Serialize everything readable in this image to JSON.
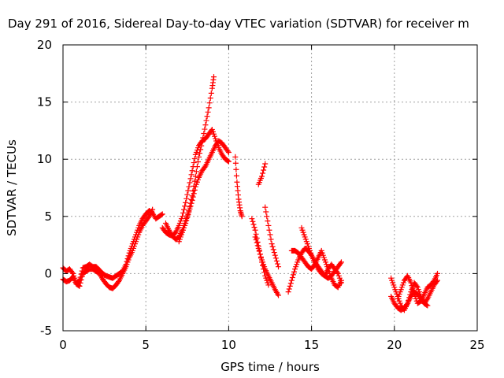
{
  "chart_data": {
    "type": "scatter",
    "title": "Day 291 of 2016, Sidereal Day-to-day VTEC variation (SDTVAR) for receiver m",
    "xlabel": "GPS time / hours",
    "ylabel": "SDTVAR / TECUs",
    "xlim": [
      0,
      25
    ],
    "ylim": [
      -5,
      20
    ],
    "xticks": [
      "0",
      "5",
      "10",
      "15",
      "20",
      "25"
    ],
    "yticks": [
      "-5",
      "0",
      "5",
      "10",
      "15",
      "20"
    ],
    "grid": true,
    "marker": "+",
    "color": "#ff0000",
    "series": [
      {
        "x": [
          0.0,
          0.2,
          0.4,
          0.6,
          0.8,
          1.0,
          1.2,
          1.4,
          1.6,
          1.8,
          2.0,
          2.2,
          2.4,
          2.6,
          2.8,
          3.0,
          3.2,
          3.4,
          3.6,
          3.8,
          4.0,
          4.2,
          4.4,
          4.6,
          4.8,
          5.0,
          5.2,
          5.4,
          5.6,
          5.8,
          6.0
        ],
        "y": [
          0.5,
          0.2,
          0.4,
          0.0,
          -0.8,
          -0.6,
          0.5,
          0.6,
          0.8,
          0.6,
          0.6,
          0.3,
          0.0,
          -0.2,
          -0.3,
          -0.4,
          -0.2,
          0.0,
          0.2,
          0.8,
          1.8,
          2.6,
          3.4,
          4.2,
          4.8,
          5.2,
          5.5,
          5.3,
          4.8,
          5.0,
          5.2
        ]
      },
      {
        "x": [
          0.0,
          0.2,
          0.4,
          0.6,
          0.8,
          1.0,
          1.2,
          1.4,
          1.6,
          1.8,
          2.0,
          2.2,
          2.4,
          2.6,
          2.8,
          3.0,
          3.2,
          3.4,
          3.6,
          3.8,
          4.0,
          4.2,
          4.4,
          4.6,
          4.8,
          5.0,
          5.2,
          5.4
        ],
        "y": [
          -0.5,
          -0.7,
          -0.6,
          -0.3,
          -0.9,
          -1.1,
          0.0,
          0.2,
          0.4,
          0.4,
          0.2,
          0.0,
          -0.5,
          -0.9,
          -1.2,
          -1.3,
          -1.0,
          -0.6,
          0.0,
          0.6,
          1.4,
          2.0,
          2.8,
          3.6,
          4.2,
          4.6,
          5.0,
          5.6
        ]
      },
      {
        "x": [
          6.2,
          6.4,
          6.6,
          6.8,
          7.0,
          7.2,
          7.4,
          7.6,
          7.8,
          8.0,
          8.2,
          8.4,
          8.6,
          8.8,
          9.0,
          9.1
        ],
        "y": [
          4.4,
          3.8,
          3.3,
          3.0,
          3.2,
          3.8,
          4.6,
          5.5,
          6.8,
          8.5,
          10.2,
          11.5,
          13.0,
          14.5,
          16.2,
          17.2
        ]
      },
      {
        "x": [
          6.0,
          6.2,
          6.4,
          6.6,
          6.8,
          7.0,
          7.2,
          7.4,
          7.6,
          7.8,
          8.0,
          8.2,
          8.4,
          8.6,
          8.8,
          9.0,
          9.2,
          9.4,
          9.6,
          9.8,
          10.0
        ],
        "y": [
          4.0,
          3.6,
          3.4,
          3.3,
          3.6,
          4.2,
          5.0,
          6.2,
          7.6,
          9.0,
          10.4,
          11.2,
          11.6,
          11.8,
          12.2,
          12.6,
          11.8,
          11.0,
          10.4,
          10.0,
          9.8
        ]
      },
      {
        "x": [
          7.0,
          7.2,
          7.4,
          7.6,
          7.8,
          8.0,
          8.2,
          8.4,
          8.6,
          8.8,
          9.0,
          9.2,
          9.4,
          9.6,
          9.8,
          10.0
        ],
        "y": [
          2.8,
          3.6,
          4.4,
          5.4,
          6.4,
          7.6,
          8.4,
          9.0,
          9.4,
          10.0,
          10.6,
          11.2,
          11.6,
          11.4,
          11.0,
          10.6
        ]
      },
      {
        "x": [
          10.4,
          10.5,
          10.6,
          10.7,
          10.8
        ],
        "y": [
          10.2,
          8.0,
          6.5,
          5.5,
          5.0
        ]
      },
      {
        "x": [
          11.8,
          12.0,
          12.2
        ],
        "y": [
          7.8,
          8.5,
          9.6
        ]
      },
      {
        "x": [
          11.4,
          11.6,
          11.8,
          12.0,
          12.2,
          12.4
        ],
        "y": [
          4.8,
          3.8,
          2.4,
          1.0,
          -0.2,
          -1.0
        ]
      },
      {
        "x": [
          12.2,
          12.4,
          12.6,
          12.8,
          13.0
        ],
        "y": [
          5.8,
          4.2,
          2.6,
          1.6,
          0.6
        ]
      },
      {
        "x": [
          11.6,
          11.8,
          12.0,
          12.2,
          12.4,
          12.6,
          12.8,
          13.0
        ],
        "y": [
          3.2,
          2.2,
          1.2,
          0.4,
          -0.2,
          -0.8,
          -1.4,
          -1.9
        ]
      },
      {
        "x": [
          13.6,
          13.8,
          14.0,
          14.2,
          14.4,
          14.6,
          14.8,
          15.0,
          15.2,
          15.4,
          15.6,
          15.8,
          16.0,
          16.2,
          16.4,
          16.6,
          16.8
        ],
        "y": [
          -1.6,
          -0.6,
          0.4,
          1.2,
          1.8,
          2.2,
          2.0,
          1.6,
          1.0,
          0.4,
          0.0,
          -0.2,
          -0.4,
          -0.2,
          0.2,
          0.6,
          1.0
        ]
      },
      {
        "x": [
          13.8,
          14.0,
          14.2,
          14.4,
          14.6,
          14.8,
          15.0,
          15.2,
          15.4,
          15.6,
          15.8,
          16.0,
          16.2,
          16.4,
          16.6,
          16.8
        ],
        "y": [
          2.0,
          2.0,
          1.8,
          1.4,
          1.0,
          0.6,
          0.4,
          0.8,
          1.4,
          2.0,
          1.2,
          0.4,
          -0.4,
          -1.0,
          -1.2,
          -0.6
        ]
      },
      {
        "x": [
          14.4,
          14.6,
          14.8,
          15.0,
          15.2,
          15.4,
          15.6,
          15.8,
          16.0,
          16.2,
          16.4,
          16.6,
          16.8
        ],
        "y": [
          4.0,
          3.2,
          2.4,
          1.6,
          1.0,
          0.6,
          0.2,
          -0.2,
          0.4,
          0.8,
          0.4,
          0.0,
          -0.8
        ]
      },
      {
        "x": [
          19.8,
          20.0,
          20.2,
          20.4,
          20.6,
          20.8,
          21.0,
          21.2,
          21.4,
          21.6,
          21.8,
          22.0,
          22.2,
          22.4,
          22.6
        ],
        "y": [
          -2.0,
          -2.6,
          -3.0,
          -3.2,
          -3.0,
          -2.6,
          -2.0,
          -1.6,
          -1.8,
          -2.2,
          -2.6,
          -2.2,
          -1.6,
          -1.0,
          -0.6
        ]
      },
      {
        "x": [
          19.8,
          20.0,
          20.2,
          20.4,
          20.6,
          20.8,
          21.0,
          21.2,
          21.4,
          21.6,
          21.8,
          22.0
        ],
        "y": [
          -0.4,
          -1.2,
          -2.0,
          -2.8,
          -3.2,
          -2.6,
          -1.6,
          -0.8,
          -1.2,
          -2.0,
          -2.6,
          -2.8
        ]
      },
      {
        "x": [
          20.2,
          20.4,
          20.6,
          20.8,
          21.0,
          21.2,
          21.4,
          21.6,
          21.8,
          22.0,
          22.2,
          22.4,
          22.6
        ],
        "y": [
          -2.2,
          -1.4,
          -0.6,
          -0.2,
          -0.8,
          -1.8,
          -2.6,
          -2.4,
          -1.8,
          -1.2,
          -1.0,
          -0.6,
          0.0
        ]
      }
    ]
  }
}
